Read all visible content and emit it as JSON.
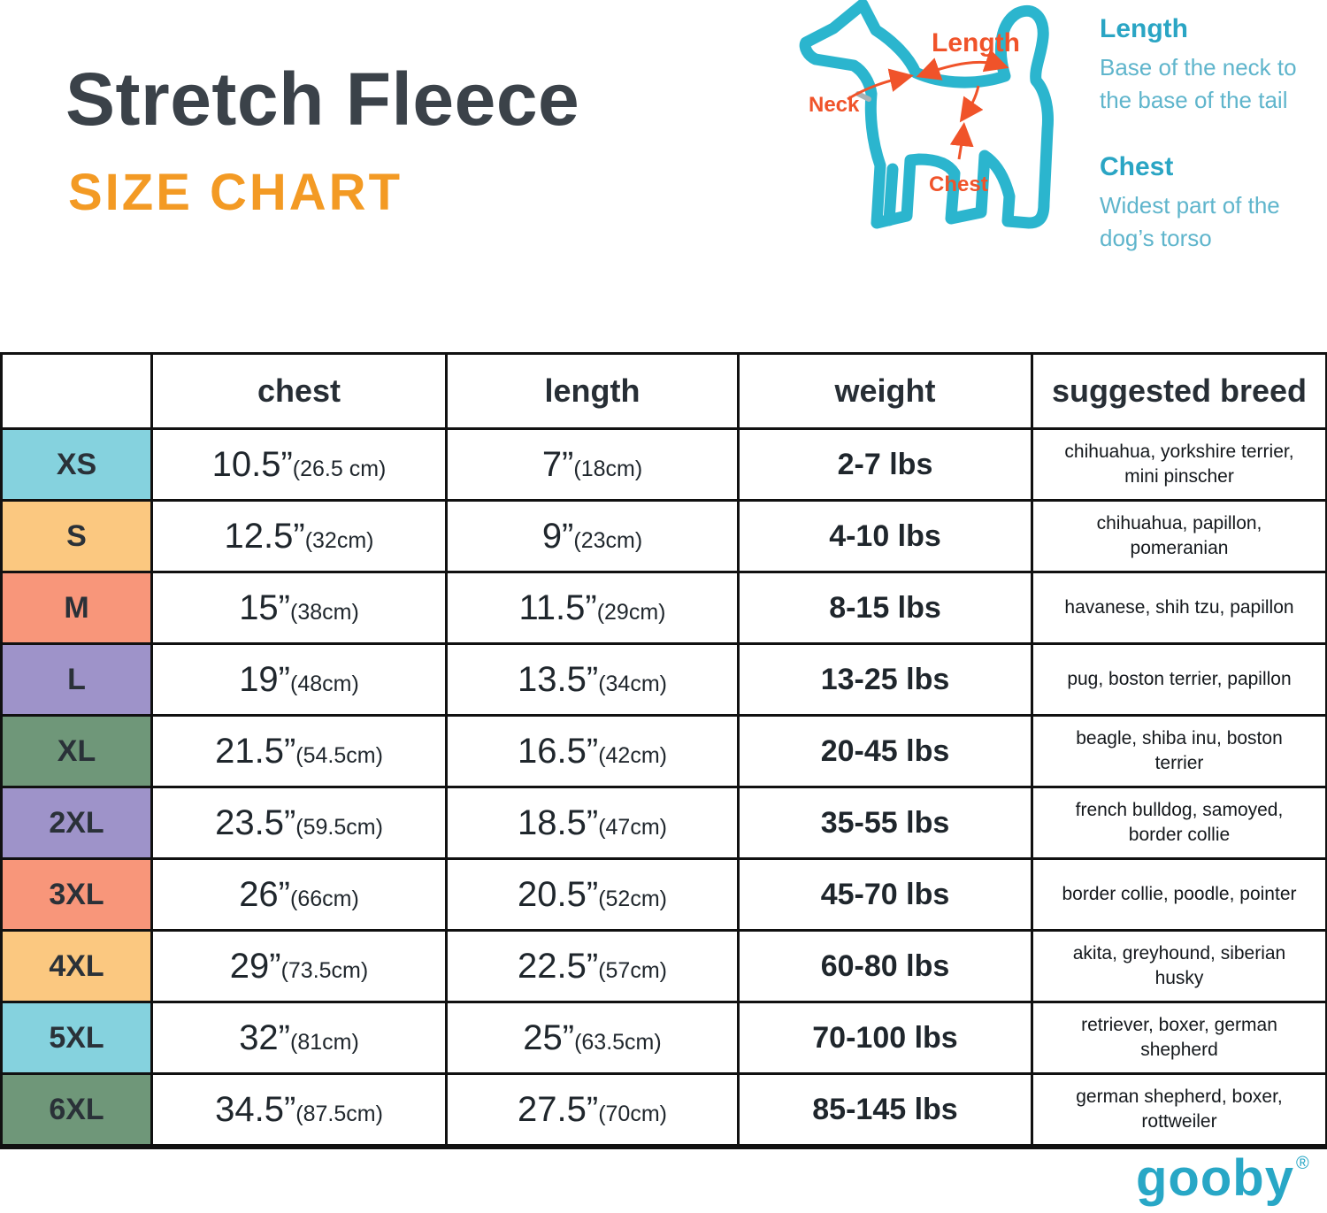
{
  "page": {
    "title": "Stretch Fleece",
    "subtitle": "SIZE CHART"
  },
  "diagram": {
    "annotations": {
      "length": "Length",
      "neck": "Neck",
      "chest": "Chest"
    },
    "legend": [
      {
        "term": "Length",
        "lines": [
          "Base of the neck to",
          "the base of the tail"
        ]
      },
      {
        "term": "Chest",
        "lines": [
          "Widest part of the",
          "dog’s torso"
        ]
      }
    ],
    "colors": {
      "dog_outline": "#2BB5CE",
      "annotation": "#F0532A",
      "legend_term": "#2AA5C4",
      "legend_definition": "#5FB5CC"
    }
  },
  "chart_data": {
    "type": "table",
    "header": [
      "",
      "chest",
      "length",
      "weight",
      "suggested breed"
    ],
    "rows": [
      {
        "size": "XS",
        "color": "#85D2DE",
        "chest": "10.5”",
        "chest_metric": "(26.5 cm)",
        "length": "7”",
        "length_metric": "(18cm)",
        "weight": "2-7 lbs",
        "breeds": "chihuahua, yorkshire terrier, mini pinscher"
      },
      {
        "size": "S",
        "color": "#FBC880",
        "chest": "12.5”",
        "chest_metric": "(32cm)",
        "length": "9”",
        "length_metric": "(23cm)",
        "weight": "4-10 lbs",
        "breeds": "chihuahua, papillon, pomeranian"
      },
      {
        "size": "M",
        "color": "#F8967A",
        "chest": "15”",
        "chest_metric": "(38cm)",
        "length": "11.5”",
        "length_metric": "(29cm)",
        "weight": "8-15 lbs",
        "breeds": "havanese, shih tzu, papillon"
      },
      {
        "size": "L",
        "color": "#9E93C9",
        "chest": "19”",
        "chest_metric": "(48cm)",
        "length": "13.5”",
        "length_metric": "(34cm)",
        "weight": "13-25 lbs",
        "breeds": "pug, boston terrier, papillon"
      },
      {
        "size": "XL",
        "color": "#6F9779",
        "chest": "21.5”",
        "chest_metric": "(54.5cm)",
        "length": "16.5”",
        "length_metric": "(42cm)",
        "weight": "20-45 lbs",
        "breeds": "beagle, shiba inu, boston terrier"
      },
      {
        "size": "2XL",
        "color": "#9E93C9",
        "chest": "23.5”",
        "chest_metric": "(59.5cm)",
        "length": "18.5”",
        "length_metric": "(47cm)",
        "weight": "35-55 lbs",
        "breeds": "french bulldog, samoyed, border collie"
      },
      {
        "size": "3XL",
        "color": "#F8967A",
        "chest": "26”",
        "chest_metric": "(66cm)",
        "length": "20.5”",
        "length_metric": "(52cm)",
        "weight": "45-70 lbs",
        "breeds": "border collie, poodle, pointer"
      },
      {
        "size": "4XL",
        "color": "#FBC880",
        "chest": "29”",
        "chest_metric": "(73.5cm)",
        "length": "22.5”",
        "length_metric": "(57cm)",
        "weight": "60-80 lbs",
        "breeds": "akita, greyhound, siberian husky"
      },
      {
        "size": "5XL",
        "color": "#85D2DE",
        "chest": "32”",
        "chest_metric": "(81cm)",
        "length": "25”",
        "length_metric": "(63.5cm)",
        "weight": "70-100 lbs",
        "breeds": "retriever, boxer, german shepherd"
      },
      {
        "size": "6XL",
        "color": "#6F9779",
        "chest": "34.5”",
        "chest_metric": "(87.5cm)",
        "length": "27.5”",
        "length_metric": "(70cm)",
        "weight": "85-145 lbs",
        "breeds": "german shepherd, boxer, rottweiler"
      }
    ]
  },
  "footer": {
    "logo": "gooby",
    "registered": "®",
    "logo_color": "#28A7C6"
  },
  "colors": {
    "title": "#3B4249",
    "subtitle_accent": "#F39A24",
    "table_border": "#111111"
  }
}
